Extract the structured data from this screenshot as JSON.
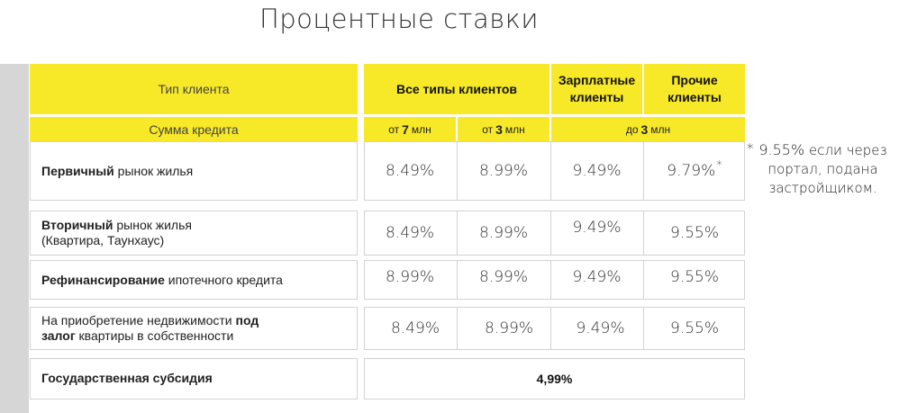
{
  "title": "Процентные ставки",
  "header": {
    "client_type": "Тип клиента",
    "loan_amount": "Сумма кредита",
    "all_clients": "Все типы клиентов",
    "salary_l1": "Зарплатные",
    "salary_l2": "клиенты",
    "other_l1": "Прочие",
    "other_l2": "клиенты",
    "sub_from": "от",
    "sub_7": "7",
    "sub_3": "3",
    "sub_unit": "млн",
    "sub_upto": "до"
  },
  "rows": [
    {
      "bold": "Первичный",
      "rest": " рынок жилья",
      "v1": "8.49%",
      "v2": "8.99%",
      "v3": "9.49%",
      "v4": "9.79%",
      "v4_mark": "*"
    },
    {
      "bold": "Вторичный",
      "rest": " рынок жилья",
      "line2": "(Квартира, Таунхаус)",
      "v1": "8.49%",
      "v2": "8.99%",
      "v3": "9.49%",
      "v4": "9.55%"
    },
    {
      "bold": "Рефинансирование",
      "rest": " ипотечного кредита",
      "v1": "8.99%",
      "v2": "8.99%",
      "v3": "9.49%",
      "v4": "9.55%"
    },
    {
      "pre": "На приобретение недвижимости ",
      "bold": "под",
      "bold2": "залог",
      "rest": " квартиры в собственности",
      "v1": "8.49%",
      "v2": "8.99%",
      "v3": "9.49%",
      "v4": "9.55%"
    }
  ],
  "subsidy": {
    "label": "Государственная субсидия",
    "value": "4,99%"
  },
  "note": {
    "star": "*",
    "rate": "9.55%",
    "l1_rest": "если через",
    "l2": "портал, подана",
    "l3": "застройщиком."
  }
}
